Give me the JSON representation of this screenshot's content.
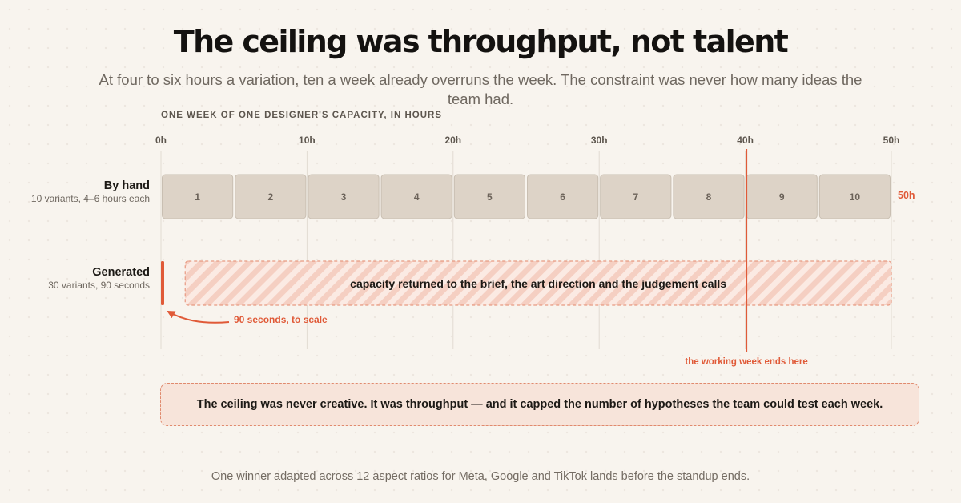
{
  "title": "The ceiling was throughput, not talent",
  "subtitle": "At four to six hours a variation, ten a week already overruns the week. The constraint was never how many ideas the team had.",
  "callout": "The ceiling was never creative. It was throughput — and it capped the number of hypotheses the team could test each week.",
  "footer": "One winner adapted across 12 aspect ratios for Meta, Google and TikTok lands before the standup ends.",
  "colors": {
    "accent": "#e05a38",
    "block_fill": "#ddd3c7",
    "block_border": "#c9bfb2",
    "hatch_stripe": "#f5cfc2",
    "hatch_bg": "#fbeae3",
    "grid": "#e2dbd2"
  },
  "chart_data": {
    "type": "bar",
    "axis_title": "ONE WEEK OF ONE DESIGNER'S CAPACITY, IN HOURS",
    "xlim": [
      0,
      50
    ],
    "x_ticks": [
      "0h",
      "10h",
      "20h",
      "30h",
      "40h",
      "50h"
    ],
    "x_tick_values": [
      0,
      10,
      20,
      30,
      40,
      50
    ],
    "grid": true,
    "rows": [
      {
        "label": "By hand",
        "sublabel": "10 variants, 4–6 hours each",
        "segments": [
          "1",
          "2",
          "3",
          "4",
          "5",
          "6",
          "7",
          "8",
          "9",
          "10"
        ],
        "segment_hours": 5,
        "total_hours": 50,
        "end_label": "50h"
      },
      {
        "label": "Generated",
        "sublabel": "30 variants, 90 seconds",
        "hours": 0.025,
        "annotation": "90 seconds, to scale",
        "returned_capacity_label": "capacity returned to the brief, the art direction and the judgement calls",
        "returned_capacity_hours": [
          1,
          50
        ]
      }
    ],
    "reference_line": {
      "x": 40,
      "label": "the working week ends here"
    }
  }
}
